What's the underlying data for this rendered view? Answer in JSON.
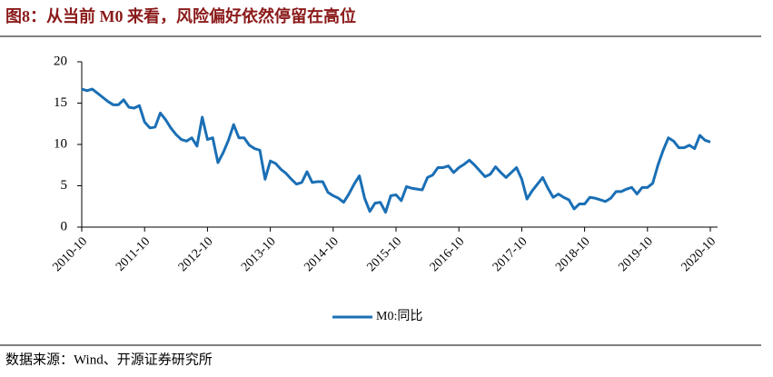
{
  "chart_data": {
    "type": "line",
    "title": "图8：从当前 M0 来看，风险偏好依然停留在高位",
    "source": "数据来源：Wind、开源证券研究所",
    "categories": [
      "2010-10",
      null,
      null,
      null,
      null,
      null,
      null,
      null,
      null,
      null,
      null,
      null,
      "2011-10",
      null,
      null,
      null,
      null,
      null,
      null,
      null,
      null,
      null,
      null,
      null,
      "2012-10",
      null,
      null,
      null,
      null,
      null,
      null,
      null,
      null,
      null,
      null,
      null,
      "2013-10",
      null,
      null,
      null,
      null,
      null,
      null,
      null,
      null,
      null,
      null,
      null,
      "2014-10",
      null,
      null,
      null,
      null,
      null,
      null,
      null,
      null,
      null,
      null,
      null,
      "2015-10",
      null,
      null,
      null,
      null,
      null,
      null,
      null,
      null,
      null,
      null,
      null,
      "2016-10",
      null,
      null,
      null,
      null,
      null,
      null,
      null,
      null,
      null,
      null,
      null,
      "2017-10",
      null,
      null,
      null,
      null,
      null,
      null,
      null,
      null,
      null,
      null,
      null,
      "2018-10",
      null,
      null,
      null,
      null,
      null,
      null,
      null,
      null,
      null,
      null,
      null,
      "2019-10",
      null,
      null,
      null,
      null,
      null,
      null,
      null,
      null,
      null,
      null,
      null,
      "2020-10"
    ],
    "series": [
      {
        "name": "M0:同比",
        "color": "#1a6fb5",
        "values": [
          16.7,
          16.5,
          16.7,
          16.2,
          15.7,
          15.2,
          14.8,
          14.8,
          15.4,
          14.5,
          14.4,
          14.7,
          12.7,
          12.0,
          12.1,
          13.8,
          13.0,
          12.0,
          11.2,
          10.6,
          10.4,
          10.8,
          9.8,
          13.3,
          10.6,
          10.8,
          7.8,
          9.0,
          10.5,
          12.4,
          10.8,
          10.8,
          9.9,
          9.5,
          9.3,
          5.8,
          8.0,
          7.7,
          7.0,
          6.5,
          5.8,
          5.2,
          5.4,
          6.7,
          5.4,
          5.5,
          5.5,
          4.2,
          3.8,
          3.5,
          3.0,
          4.0,
          5.2,
          6.2,
          3.5,
          1.9,
          2.9,
          3.0,
          1.8,
          3.8,
          3.9,
          3.2,
          4.9,
          4.7,
          4.6,
          4.5,
          6.0,
          6.3,
          7.2,
          7.2,
          7.4,
          6.6,
          7.2,
          7.6,
          8.1,
          7.5,
          6.8,
          6.1,
          6.4,
          7.3,
          6.6,
          6.0,
          6.6,
          7.2,
          5.8,
          3.4,
          4.4,
          5.2,
          6.0,
          4.7,
          3.6,
          4.0,
          3.6,
          3.3,
          2.2,
          2.8,
          2.8,
          3.6,
          3.5,
          3.3,
          3.1,
          3.5,
          4.3,
          4.3,
          4.6,
          4.8,
          4.0,
          4.8,
          4.8,
          5.3,
          7.5,
          9.3,
          10.8,
          10.4,
          9.6,
          9.6,
          9.9,
          9.5,
          11.1,
          10.5,
          10.3
        ]
      }
    ],
    "ylim": [
      0,
      20
    ],
    "yticks": [
      0,
      5,
      10,
      15,
      20
    ],
    "legend": "bottom"
  }
}
